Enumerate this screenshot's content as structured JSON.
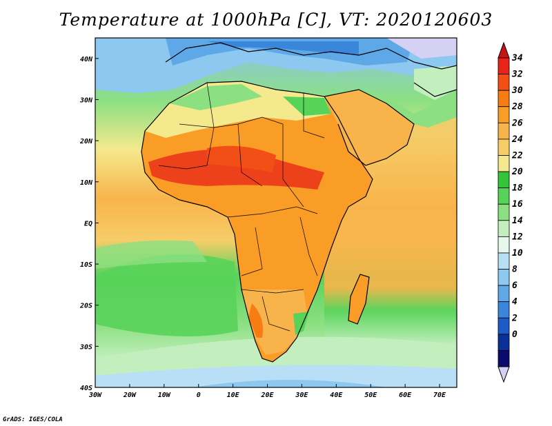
{
  "title": "Temperature at 1000hPa [C], VT: 2020120603",
  "credit": "GrADS: IGES/COLA",
  "map": {
    "lon_range": [
      -30,
      75
    ],
    "lat_range": [
      -40,
      45
    ],
    "x_ticks": [
      "30W",
      "20W",
      "10W",
      "0",
      "10E",
      "20E",
      "30E",
      "40E",
      "50E",
      "60E",
      "70E"
    ],
    "y_ticks": [
      "40N",
      "30N",
      "20N",
      "10N",
      "EQ",
      "10S",
      "20S",
      "30S",
      "40S"
    ]
  },
  "colorbar": {
    "labels": [
      "34",
      "32",
      "30",
      "28",
      "26",
      "24",
      "22",
      "20",
      "18",
      "16",
      "14",
      "12",
      "10",
      "8",
      "6",
      "4",
      "2",
      "0"
    ],
    "colors": [
      "#e8231a",
      "#f24f16",
      "#f77c11",
      "#f99d27",
      "#f8b44a",
      "#f6cd69",
      "#f5e98d",
      "#33c439",
      "#58d35a",
      "#8ce082",
      "#c2efbd",
      "#e7f6ec",
      "#b8dff5",
      "#8dc8f0",
      "#5ea8e8",
      "#3a86da",
      "#1d5cc8",
      "#0a2f96",
      "#0d0a6e"
    ],
    "above_color": "#c81313",
    "below_color": "#d5d1f4"
  }
}
